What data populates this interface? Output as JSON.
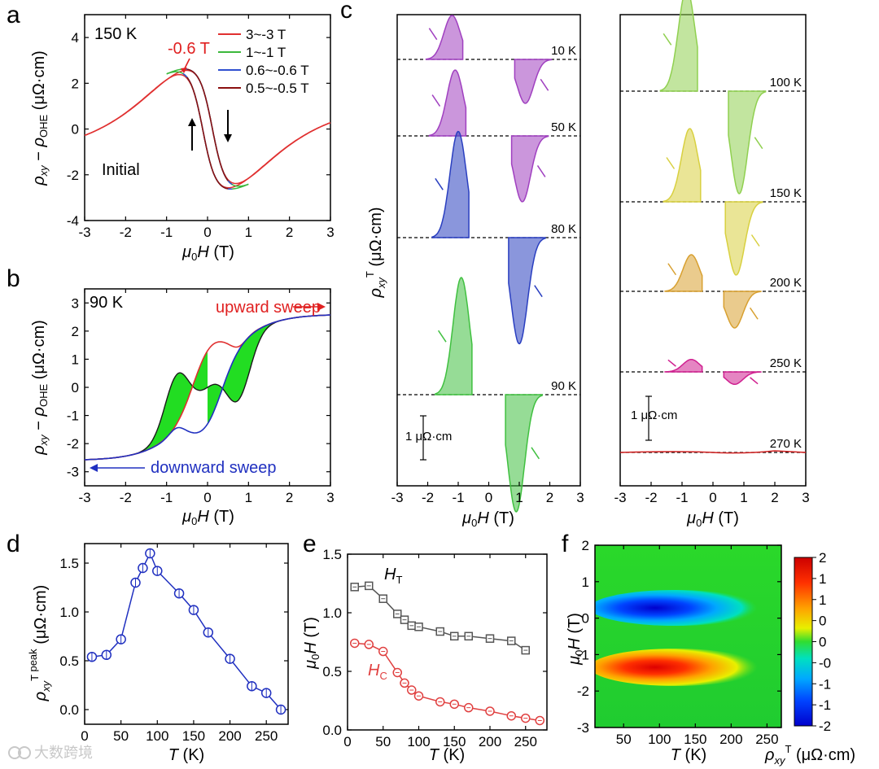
{
  "watermark": "大数跨境",
  "chart_data": [
    {
      "panel": "a",
      "type": "line",
      "annotation_temp": "150 K",
      "annotation_field": "-0.6 T",
      "annotation_initial": "Initial",
      "xlabel_main": "μ",
      "xlabel_sub": "0",
      "xlabel_tail": "H (T)",
      "ylabel": "ρxy − ρOHE (μΩ·cm)",
      "xlim": [
        -3,
        3
      ],
      "ylim": [
        -4,
        5
      ],
      "xticks": [
        -3,
        -2,
        -1,
        0,
        1,
        2,
        3
      ],
      "yticks": [
        -4,
        -2,
        0,
        2,
        4
      ],
      "series": [
        {
          "name": "3~-3 T",
          "color": "#e03030",
          "sweep_max": 3
        },
        {
          "name": "1~-1 T",
          "color": "#3cb83c",
          "sweep_max": 1
        },
        {
          "name": "0.6~-0.6 T",
          "color": "#3050d0",
          "sweep_max": 0.6
        },
        {
          "name": "0.5~-0.5 T",
          "color": "#8b1010",
          "sweep_max": 0.5
        }
      ]
    },
    {
      "panel": "b",
      "type": "line",
      "annotation_temp": "90 K",
      "label_up": "upward sweep",
      "label_down": "downward sweep",
      "xlabel_main": "μ",
      "xlabel_sub": "0",
      "xlabel_tail": "H (T)",
      "ylabel": "ρxy − ρOHE (μΩ·cm)",
      "xlim": [
        -3,
        3
      ],
      "ylim": [
        -3.5,
        3.5
      ],
      "xticks": [
        -3,
        -2,
        -1,
        0,
        1,
        2,
        3
      ],
      "yticks": [
        -3,
        -2,
        -1,
        0,
        1,
        2,
        3
      ],
      "series": [
        {
          "name": "upward sweep",
          "color": "#e03030"
        },
        {
          "name": "downward sweep",
          "color": "#2030c0"
        }
      ],
      "fill_color": "#22dd22"
    },
    {
      "panel": "c",
      "type": "area",
      "ylabel": "ρxyT (μΩ·cm)",
      "xlabel_main": "μ",
      "xlabel_sub": "0",
      "xlabel_tail": "H (T)",
      "xlim": [
        -3,
        3
      ],
      "xticks": [
        -3,
        -2,
        -1,
        0,
        1,
        2,
        3
      ],
      "scale_bar": "1 μΩ·cm",
      "left_traces": [
        {
          "temp": "10 K",
          "peak": 0.6,
          "peak_h": 1.2,
          "color": "#a040c0"
        },
        {
          "temp": "50 K",
          "peak": 0.9,
          "peak_h": 1.1,
          "color": "#a040c0"
        },
        {
          "temp": "80 K",
          "peak": 1.45,
          "peak_h": 1.0,
          "color": "#2a3fc0"
        },
        {
          "temp": "90 K",
          "peak": 1.6,
          "peak_h": 0.9,
          "color": "#40c040"
        }
      ],
      "right_traces": [
        {
          "temp": "100 K",
          "peak": 1.4,
          "peak_h": 0.85,
          "color": "#90d050"
        },
        {
          "temp": "150 K",
          "peak": 1.0,
          "peak_h": 0.75,
          "color": "#d8d040"
        },
        {
          "temp": "200 K",
          "peak": 0.5,
          "peak_h": 0.7,
          "color": "#d8a030"
        },
        {
          "temp": "250 K",
          "peak": 0.17,
          "peak_h": 0.7,
          "color": "#d02090"
        },
        {
          "temp": "270 K",
          "peak": 0.0,
          "peak_h": 0.7,
          "color": "#d02020"
        }
      ]
    },
    {
      "panel": "d",
      "type": "scatter",
      "xlabel": "T (K)",
      "ylabel": "ρxyT peak (μΩ·cm)",
      "xlim": [
        0,
        280
      ],
      "ylim": [
        -0.15,
        1.7
      ],
      "xticks": [
        0,
        50,
        100,
        150,
        200,
        250
      ],
      "yticks": [
        0.0,
        0.5,
        1.0,
        1.5
      ],
      "series": [
        {
          "color": "#2030c0",
          "x": [
            10,
            30,
            50,
            70,
            80,
            90,
            100,
            130,
            150,
            170,
            200,
            230,
            250,
            270
          ],
          "y": [
            0.54,
            0.56,
            0.72,
            1.3,
            1.45,
            1.6,
            1.42,
            1.19,
            1.02,
            0.79,
            0.52,
            0.24,
            0.17,
            0.0
          ]
        }
      ]
    },
    {
      "panel": "e",
      "type": "scatter",
      "xlabel": "T (K)",
      "ylabel": "μ0H (T)",
      "xlim": [
        0,
        280
      ],
      "ylim": [
        0,
        1.5
      ],
      "xticks": [
        0,
        50,
        100,
        150,
        200,
        250
      ],
      "yticks": [
        0.0,
        0.5,
        1.0,
        1.5
      ],
      "label_HT": "H",
      "label_HT_sub": "T",
      "label_HC": "H",
      "label_HC_sub": "C",
      "series": [
        {
          "name": "HT",
          "color": "#555555",
          "x": [
            10,
            30,
            50,
            70,
            80,
            90,
            100,
            130,
            150,
            170,
            200,
            230,
            250
          ],
          "y": [
            1.22,
            1.23,
            1.12,
            0.99,
            0.94,
            0.89,
            0.88,
            0.84,
            0.8,
            0.8,
            0.78,
            0.76,
            0.68
          ]
        },
        {
          "name": "HC",
          "color": "#e04040",
          "x": [
            10,
            30,
            50,
            70,
            80,
            90,
            100,
            130,
            150,
            170,
            200,
            230,
            250,
            270
          ],
          "y": [
            0.74,
            0.73,
            0.67,
            0.49,
            0.4,
            0.34,
            0.29,
            0.24,
            0.22,
            0.19,
            0.16,
            0.12,
            0.1,
            0.08
          ]
        }
      ]
    },
    {
      "panel": "f",
      "type": "heatmap",
      "xlabel": "T (K)",
      "ylabel": "μ0H (T)",
      "xlim": [
        10,
        270
      ],
      "ylim": [
        -3,
        2
      ],
      "xticks": [
        50,
        100,
        150,
        200,
        250
      ],
      "yticks": [
        -3,
        -2,
        -1,
        0,
        1,
        2
      ],
      "colorbar_label": "ρxyT (μΩ·cm)",
      "colorbar_ticks": [
        "2",
        "1",
        "1",
        "0",
        "0",
        "-0",
        "-1",
        "-1",
        "-2"
      ],
      "colorbar_range": [
        -2,
        2
      ]
    }
  ]
}
